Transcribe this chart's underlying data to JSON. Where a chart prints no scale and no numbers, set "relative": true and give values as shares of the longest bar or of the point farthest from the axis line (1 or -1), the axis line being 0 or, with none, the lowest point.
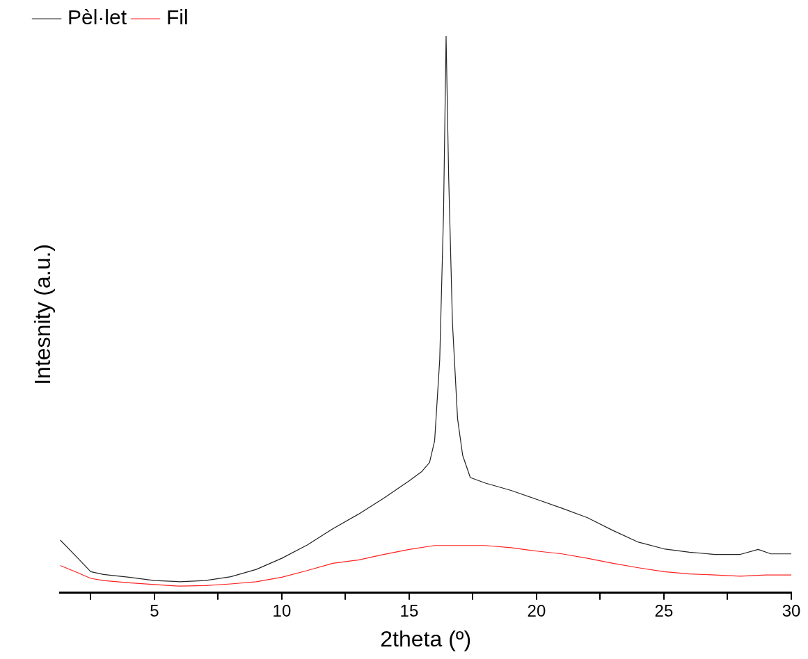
{
  "chart_data": {
    "type": "line",
    "xlabel": "2theta (º)",
    "ylabel": "Intesnity (a.u.)",
    "relative": true,
    "legend": "top left",
    "marker": "none",
    "line_style": "solid",
    "grid": false,
    "xlim": [
      1.3,
      30
    ],
    "xticks": [
      {
        "value": 2.5,
        "label": null
      },
      5,
      {
        "value": 7.5,
        "label": null
      },
      10,
      {
        "value": 12.5,
        "label": null
      },
      15,
      {
        "value": 17.5,
        "label": null
      },
      20,
      {
        "value": 22.5,
        "label": null
      },
      25,
      {
        "value": 27.5,
        "label": null
      },
      30
    ],
    "series": [
      {
        "name": "Pèl·let",
        "color": "#222222",
        "x": [
          1.3,
          2,
          2.5,
          3,
          4,
          5,
          6,
          7,
          8,
          9,
          10,
          11,
          12,
          13,
          14,
          15,
          15.5,
          15.8,
          16,
          16.2,
          16.35,
          16.45,
          16.55,
          16.7,
          16.9,
          17.1,
          17.4,
          18,
          19,
          20,
          21,
          22,
          23,
          24,
          25,
          26,
          27,
          28,
          28.7,
          29.2,
          30
        ],
        "values": [
          0.095,
          0.062,
          0.038,
          0.033,
          0.028,
          0.022,
          0.02,
          0.022,
          0.029,
          0.042,
          0.062,
          0.086,
          0.115,
          0.141,
          0.17,
          0.201,
          0.218,
          0.234,
          0.273,
          0.419,
          0.683,
          1,
          0.749,
          0.485,
          0.313,
          0.247,
          0.207,
          0.197,
          0.184,
          0.168,
          0.152,
          0.135,
          0.112,
          0.091,
          0.079,
          0.073,
          0.069,
          0.069,
          0.078,
          0.07,
          0.07
        ]
      },
      {
        "name": "Fil",
        "color": "#ff2020",
        "x": [
          1.3,
          2,
          2.5,
          3,
          4,
          5,
          6,
          7,
          8,
          9,
          10,
          11,
          12,
          13,
          14,
          15,
          16,
          17,
          18,
          19,
          20,
          21,
          22,
          23,
          24,
          25,
          26,
          27,
          28,
          29,
          30
        ],
        "values": [
          0.049,
          0.036,
          0.026,
          0.022,
          0.018,
          0.015,
          0.012,
          0.013,
          0.016,
          0.02,
          0.028,
          0.04,
          0.053,
          0.059,
          0.069,
          0.078,
          0.085,
          0.085,
          0.085,
          0.081,
          0.075,
          0.07,
          0.062,
          0.053,
          0.045,
          0.038,
          0.034,
          0.032,
          0.03,
          0.032,
          0.032
        ]
      }
    ]
  }
}
